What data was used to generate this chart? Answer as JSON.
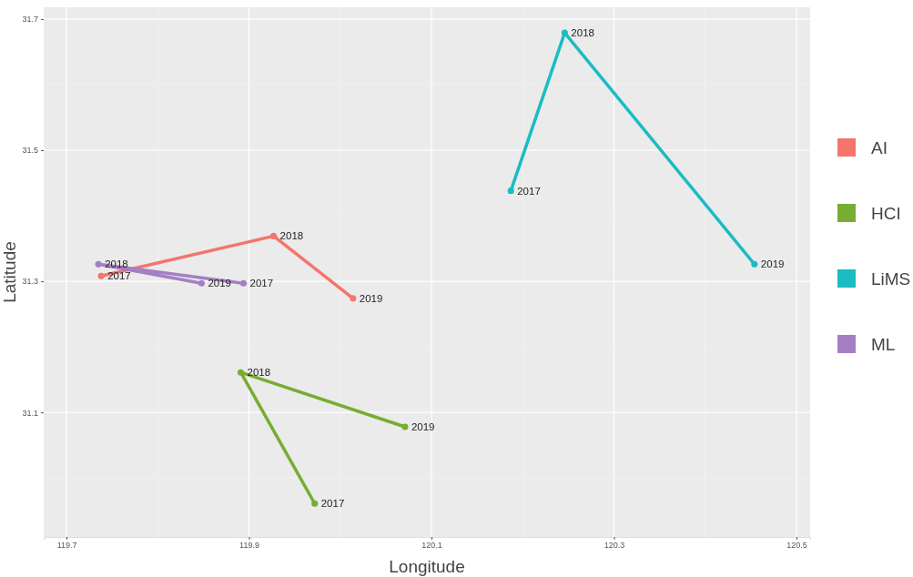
{
  "chart_data": {
    "type": "line",
    "xlabel": "Longitude",
    "ylabel": "Latitude",
    "xlim": [
      119.675,
      120.515
    ],
    "ylim": [
      30.91,
      31.718
    ],
    "xticks": [
      119.7,
      119.9,
      120.1,
      120.3,
      120.5
    ],
    "yticks": [
      31.1,
      31.3,
      31.5,
      31.7
    ],
    "grid": true,
    "legend": "right",
    "marker": "circle",
    "line_style": "solid",
    "series": [
      {
        "name": "AI",
        "color": "#f4756c",
        "x": [
          119.738,
          119.927,
          120.014
        ],
        "values": [
          31.308,
          31.369,
          31.274
        ]
      },
      {
        "name": "HCI",
        "color": "#77ad32",
        "x": [
          119.972,
          119.891,
          120.071
        ],
        "values": [
          30.961,
          31.161,
          31.078
        ]
      },
      {
        "name": "LiMS",
        "color": "#1bbcc2",
        "x": [
          120.187,
          120.246,
          120.454
        ],
        "values": [
          31.438,
          31.679,
          31.326
        ]
      },
      {
        "name": "ML",
        "color": "#a57fc4",
        "x": [
          119.894,
          119.735,
          119.848
        ],
        "values": [
          31.297,
          31.326,
          31.297
        ]
      }
    ],
    "annotations": [
      {
        "text": "2017",
        "x": 119.738,
        "y": 31.308
      },
      {
        "text": "2018",
        "x": 119.927,
        "y": 31.369
      },
      {
        "text": "2019",
        "x": 120.014,
        "y": 31.274
      },
      {
        "text": "2017",
        "x": 119.972,
        "y": 30.961
      },
      {
        "text": "2018",
        "x": 119.891,
        "y": 31.161
      },
      {
        "text": "2019",
        "x": 120.071,
        "y": 31.078
      },
      {
        "text": "2017",
        "x": 120.187,
        "y": 31.438
      },
      {
        "text": "2018",
        "x": 120.246,
        "y": 31.679
      },
      {
        "text": "2019",
        "x": 120.454,
        "y": 31.326
      },
      {
        "text": "2017",
        "x": 119.894,
        "y": 31.297
      },
      {
        "text": "2018",
        "x": 119.735,
        "y": 31.326
      },
      {
        "text": "2019",
        "x": 119.848,
        "y": 31.297
      }
    ]
  }
}
